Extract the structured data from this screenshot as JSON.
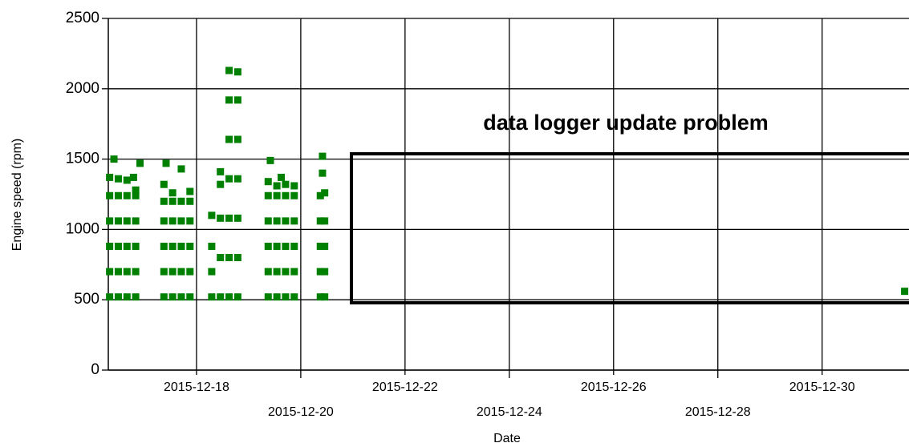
{
  "chart_data": {
    "type": "scatter",
    "xlabel": "Date",
    "ylabel": "Engine speed (rpm)",
    "annotation": "data logger update problem",
    "xlim": [
      "2015-12-16 07:24",
      "2015-12-31 16:00"
    ],
    "xticks": [
      "2015-12-18",
      "2015-12-20",
      "2015-12-22",
      "2015-12-24",
      "2015-12-26",
      "2015-12-28",
      "2015-12-30"
    ],
    "ylim": [
      0,
      2500
    ],
    "yticks": [
      0,
      500,
      1000,
      1500,
      2000,
      2500
    ],
    "grid": true,
    "series": [
      {
        "color": "#008000",
        "x": [
          "2015-12-16 08:00",
          "2015-12-16 08:00",
          "2015-12-16 08:00",
          "2015-12-16 08:00",
          "2015-12-16 08:00",
          "2015-12-16 08:00",
          "2015-12-16 12:00",
          "2015-12-16 12:00",
          "2015-12-16 12:00",
          "2015-12-16 12:00",
          "2015-12-16 12:00",
          "2015-12-16 12:00",
          "2015-12-16 16:00",
          "2015-12-16 16:00",
          "2015-12-16 16:00",
          "2015-12-16 16:00",
          "2015-12-16 16:00",
          "2015-12-16 16:00",
          "2015-12-16 20:00",
          "2015-12-16 20:00",
          "2015-12-16 20:00",
          "2015-12-16 20:00",
          "2015-12-16 20:00",
          "2015-12-16 20:00",
          "2015-12-16 10:00",
          "2015-12-16 22:00",
          "2015-12-16 19:00",
          "2015-12-17 09:00",
          "2015-12-17 09:00",
          "2015-12-17 09:00",
          "2015-12-17 09:00",
          "2015-12-17 09:00",
          "2015-12-17 09:00",
          "2015-12-17 13:00",
          "2015-12-17 13:00",
          "2015-12-17 13:00",
          "2015-12-17 13:00",
          "2015-12-17 13:00",
          "2015-12-17 13:00",
          "2015-12-17 17:00",
          "2015-12-17 17:00",
          "2015-12-17 17:00",
          "2015-12-17 17:00",
          "2015-12-17 17:00",
          "2015-12-17 17:00",
          "2015-12-17 21:00",
          "2015-12-17 21:00",
          "2015-12-17 21:00",
          "2015-12-17 21:00",
          "2015-12-17 21:00",
          "2015-12-17 21:00",
          "2015-12-17 10:00",
          "2015-12-18 07:00",
          "2015-12-18 07:00",
          "2015-12-18 07:00",
          "2015-12-18 07:00",
          "2015-12-18 11:00",
          "2015-12-18 11:00",
          "2015-12-18 11:00",
          "2015-12-18 11:00",
          "2015-12-18 11:00",
          "2015-12-18 15:00",
          "2015-12-18 15:00",
          "2015-12-18 15:00",
          "2015-12-18 15:00",
          "2015-12-18 15:00",
          "2015-12-18 15:00",
          "2015-12-18 15:00",
          "2015-12-18 19:00",
          "2015-12-18 19:00",
          "2015-12-18 19:00",
          "2015-12-18 19:00",
          "2015-12-18 19:00",
          "2015-12-18 19:00",
          "2015-12-18 19:00",
          "2015-12-19 09:00",
          "2015-12-19 09:00",
          "2015-12-19 09:00",
          "2015-12-19 09:00",
          "2015-12-19 09:00",
          "2015-12-19 09:00",
          "2015-12-19 13:00",
          "2015-12-19 13:00",
          "2015-12-19 13:00",
          "2015-12-19 13:00",
          "2015-12-19 13:00",
          "2015-12-19 13:00",
          "2015-12-19 17:00",
          "2015-12-19 17:00",
          "2015-12-19 17:00",
          "2015-12-19 17:00",
          "2015-12-19 17:00",
          "2015-12-19 17:00",
          "2015-12-19 21:00",
          "2015-12-19 21:00",
          "2015-12-19 21:00",
          "2015-12-19 21:00",
          "2015-12-19 21:00",
          "2015-12-19 21:00",
          "2015-12-19 10:00",
          "2015-12-19 15:00",
          "2015-12-20 09:00",
          "2015-12-20 09:00",
          "2015-12-20 09:00",
          "2015-12-20 09:00",
          "2015-12-20 09:00",
          "2015-12-20 11:00",
          "2015-12-20 11:00",
          "2015-12-20 11:00",
          "2015-12-20 11:00",
          "2015-12-20 11:00",
          "2015-12-20 10:00",
          "2015-12-20 10:00",
          "2015-12-31 14:00"
        ],
        "values": [
          520,
          700,
          880,
          1060,
          1240,
          1370,
          520,
          700,
          880,
          1060,
          1240,
          1360,
          520,
          700,
          880,
          1060,
          1240,
          1350,
          520,
          700,
          880,
          1060,
          1240,
          1280,
          1500,
          1470,
          1370,
          520,
          700,
          880,
          1060,
          1200,
          1320,
          520,
          700,
          880,
          1060,
          1200,
          1260,
          520,
          700,
          880,
          1060,
          1200,
          1430,
          520,
          700,
          880,
          1060,
          1200,
          1270,
          1470,
          520,
          700,
          880,
          1100,
          520,
          800,
          1080,
          1320,
          1410,
          520,
          800,
          1080,
          1360,
          1640,
          1920,
          2130,
          520,
          800,
          1080,
          1360,
          1640,
          1920,
          2120,
          520,
          700,
          880,
          1060,
          1240,
          1340,
          520,
          700,
          880,
          1060,
          1240,
          1310,
          520,
          700,
          880,
          1060,
          1240,
          1320,
          520,
          700,
          880,
          1060,
          1240,
          1310,
          1490,
          1370,
          520,
          700,
          880,
          1060,
          1240,
          520,
          700,
          880,
          1060,
          1260,
          1520,
          1400,
          560
        ]
      }
    ]
  }
}
